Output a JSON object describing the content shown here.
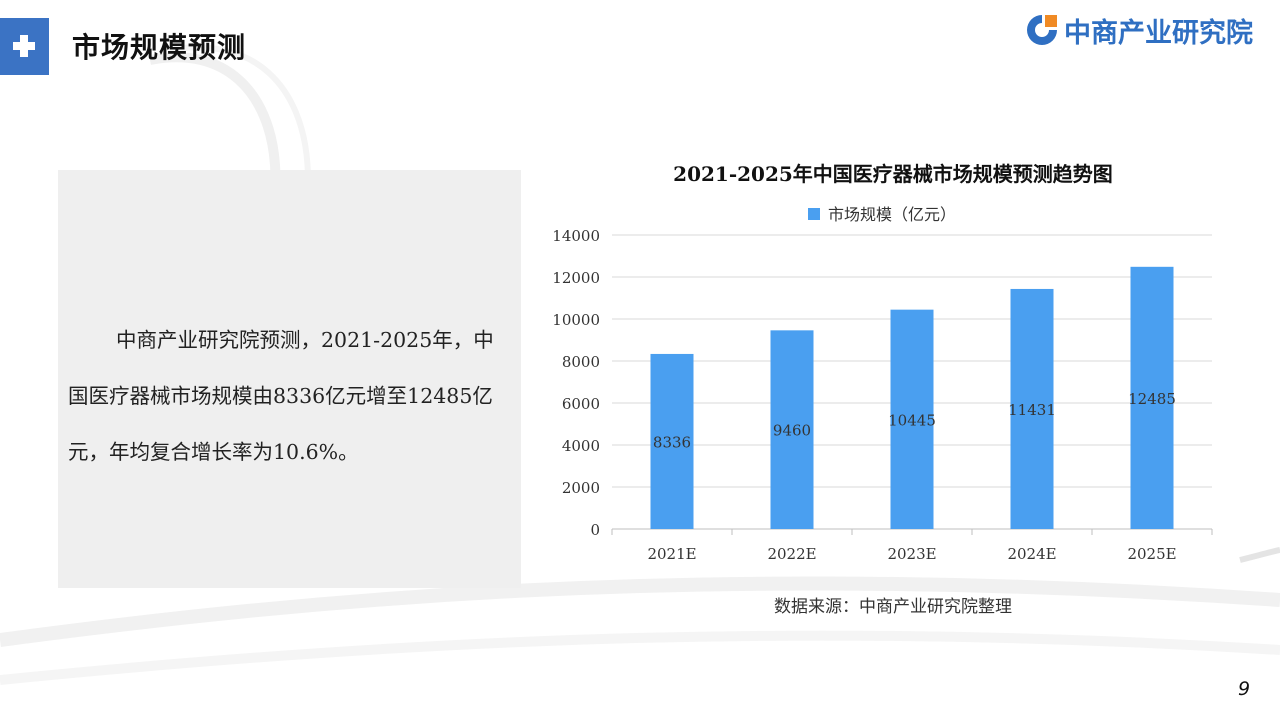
{
  "header": {
    "title": "市场规模预测",
    "logo_text": "中商产业研究院"
  },
  "text_panel": {
    "paragraph": "中商产业研究院预测，2021-2025年，中国医疗器械市场规模由8336亿元增至12485亿元，年均复合增长率为10.6%。"
  },
  "chart_data": {
    "type": "bar",
    "title": "2021-2025年中国医疗器械市场规模预测趋势图",
    "categories": [
      "2021E",
      "2022E",
      "2023E",
      "2024E",
      "2025E"
    ],
    "series": [
      {
        "name": "市场规模（亿元）",
        "values": [
          8336,
          9460,
          10445,
          11431,
          12485
        ]
      }
    ],
    "xlabel": "",
    "ylabel": "",
    "ylim": [
      0,
      14000
    ],
    "yticks": [
      0,
      2000,
      4000,
      6000,
      8000,
      10000,
      12000,
      14000
    ],
    "grid": true,
    "legend_position": "top",
    "data_labels": [
      "8336",
      "9460",
      "10445",
      "11431",
      "12485"
    ],
    "bar_color": "#4a9ff0"
  },
  "source": "数据来源：中商产业研究院整理",
  "page_number": "9",
  "colors": {
    "accent": "#3b73c4",
    "logo": "#2f6fc2",
    "panel": "#efefef",
    "bar": "#4a9ff0"
  }
}
